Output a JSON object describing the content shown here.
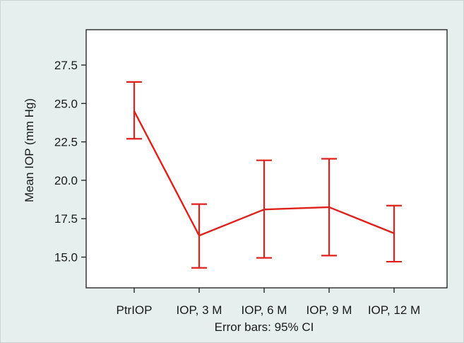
{
  "chart_data": {
    "type": "line",
    "categories": [
      "PtrIOP",
      "IOP, 3 M",
      "IOP, 6 M",
      "IOP, 9 M",
      "IOP, 12 M"
    ],
    "series": [
      {
        "values": [
          24.5,
          16.4,
          18.1,
          18.25,
          16.55
        ],
        "ci_lower": [
          22.7,
          14.3,
          14.95,
          15.1,
          14.7
        ],
        "ci_upper": [
          26.4,
          18.45,
          21.3,
          21.4,
          18.35
        ],
        "color": "#e0201b"
      }
    ],
    "ylabel": "Mean IOP (mm Hg)",
    "xlabel": "Error bars: 95% CI",
    "ylim": [
      13.0,
      29.8
    ],
    "yticks": [
      15.0,
      17.5,
      20.0,
      22.5,
      25.0,
      27.5
    ],
    "ytick_labels": [
      "15.0",
      "17.5",
      "20.0",
      "22.5",
      "25.0",
      "27.5"
    ],
    "grid": false,
    "error_bars": "95% CI"
  },
  "colors": {
    "background": "#e6efee",
    "plot_area": "#ffffff",
    "axis": "#1a1a1a",
    "series": "#e0201b"
  }
}
